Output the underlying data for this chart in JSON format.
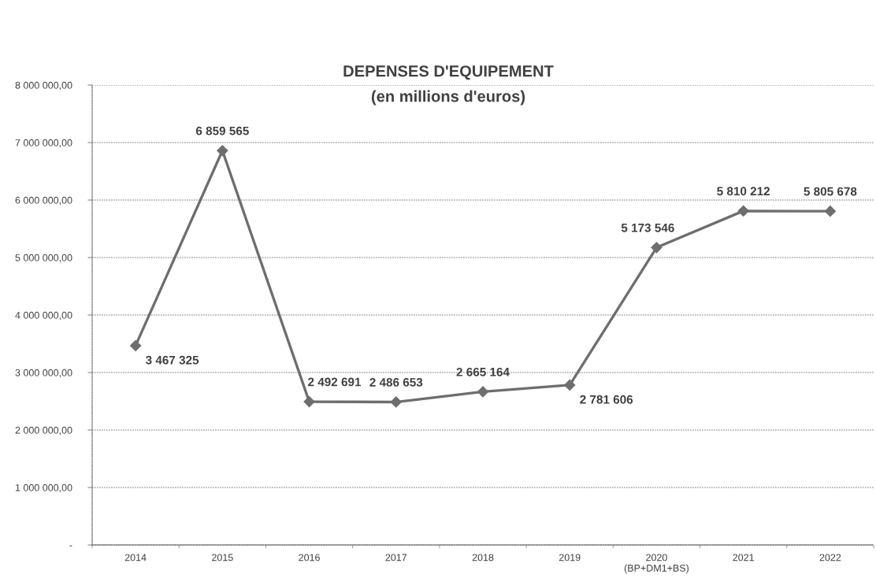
{
  "chart_data": {
    "type": "line",
    "title": "DEPENSES D'EQUIPEMENT",
    "subtitle": "(en millions d'euros)",
    "categories": [
      "2014",
      "2015",
      "2016",
      "2017",
      "2018",
      "2019",
      "2020\n(BP+DM1+BS)",
      "2021",
      "2022"
    ],
    "series": [
      {
        "color": "#6e6e6e",
        "values": [
          3467325,
          6859565,
          2492691,
          2486653,
          2665164,
          2781606,
          5173546,
          5810212,
          5805678
        ],
        "value_labels": [
          "3 467 325",
          "6 859 565",
          "2 492 691",
          "2 486 653",
          "2 665 164",
          "2 781 606",
          "5 173 546",
          "5 810 212",
          "5 805 678"
        ]
      }
    ],
    "ylim": [
      0,
      8000000
    ],
    "yticks": [
      {
        "value": 0,
        "label": "-"
      },
      {
        "value": 1000000,
        "label": "1 000 000,00"
      },
      {
        "value": 2000000,
        "label": "2 000 000,00"
      },
      {
        "value": 3000000,
        "label": "3 000 000,00"
      },
      {
        "value": 4000000,
        "label": "4 000 000,00"
      },
      {
        "value": 5000000,
        "label": "5 000 000,00"
      },
      {
        "value": 6000000,
        "label": "6 000 000,00"
      },
      {
        "value": 7000000,
        "label": "7 000 000,00"
      },
      {
        "value": 8000000,
        "label": "8 000 000,00"
      }
    ],
    "grid": "y",
    "marker": "diamond",
    "line_style": "solid"
  }
}
